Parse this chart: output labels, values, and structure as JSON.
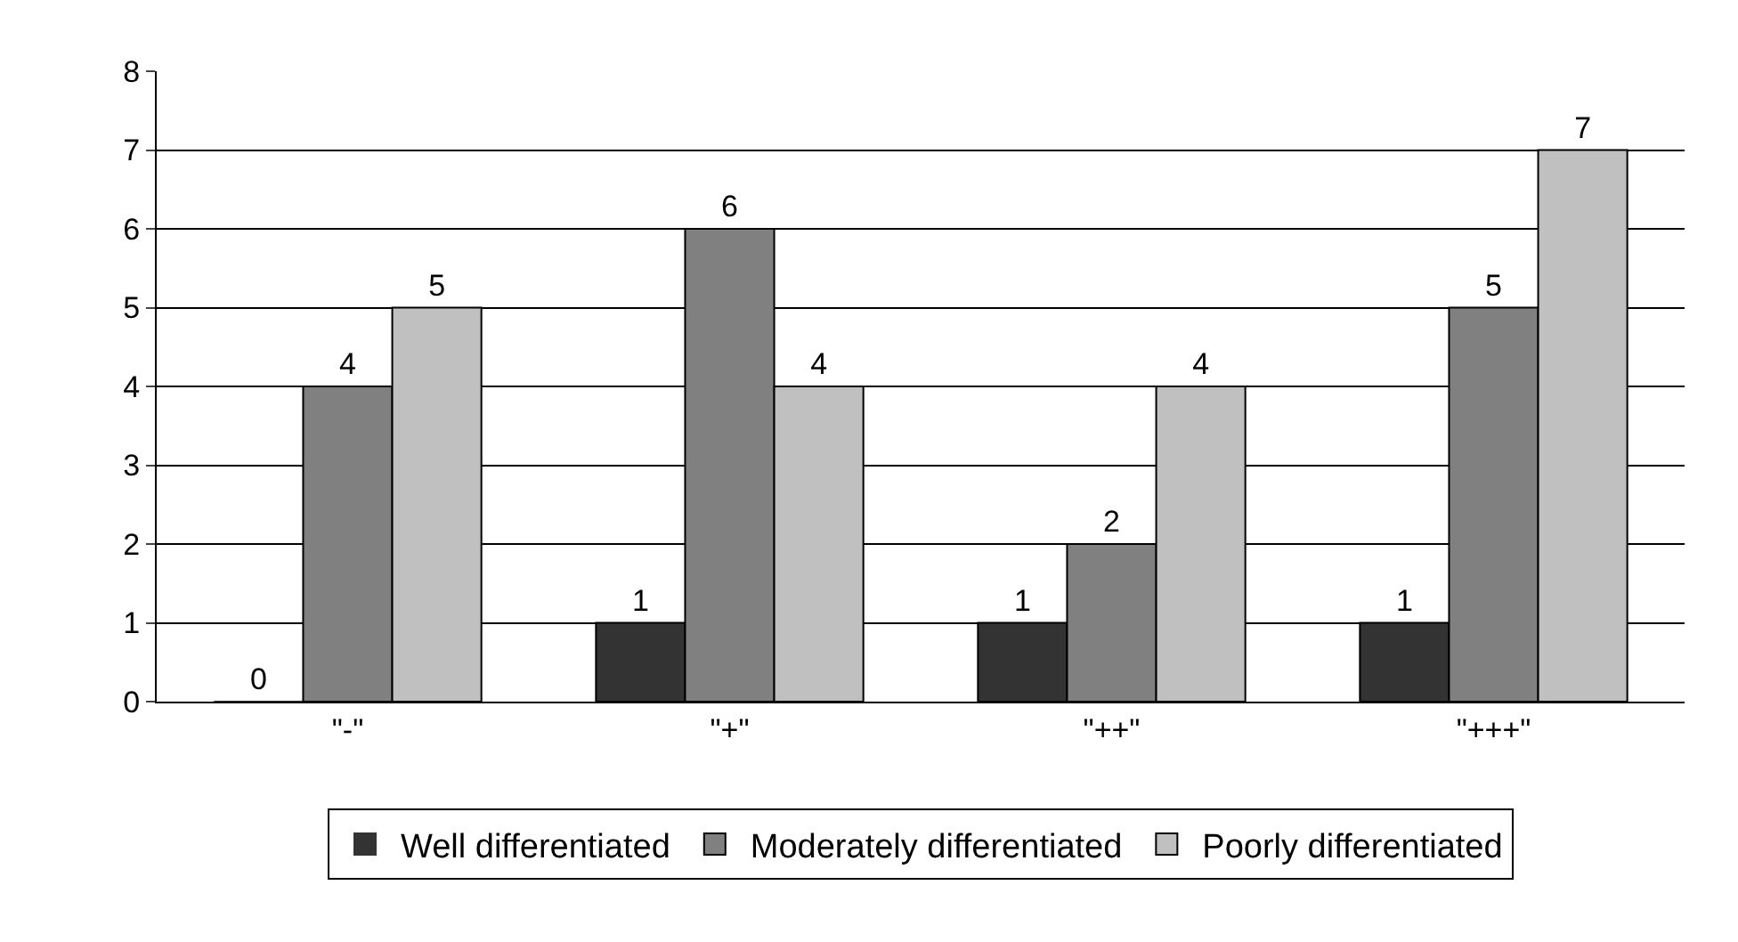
{
  "chart_data": {
    "type": "bar",
    "categories": [
      "\"-\"",
      "\"+\"",
      "\"++\"",
      "\"+++\""
    ],
    "series": [
      {
        "name": "Well differentiated",
        "color": "#333333",
        "values": [
          0,
          1,
          1,
          1
        ]
      },
      {
        "name": "Moderately differentiated",
        "color": "#808080",
        "values": [
          4,
          6,
          2,
          5
        ]
      },
      {
        "name": "Poorly differentiated",
        "color": "#c0c0c0",
        "values": [
          5,
          4,
          4,
          7
        ]
      }
    ],
    "ylim": [
      0,
      8
    ],
    "yticks": [
      0,
      1,
      2,
      3,
      4,
      5,
      6,
      7,
      8
    ],
    "grid": "y",
    "legend": "bottom",
    "data_labels": true
  }
}
